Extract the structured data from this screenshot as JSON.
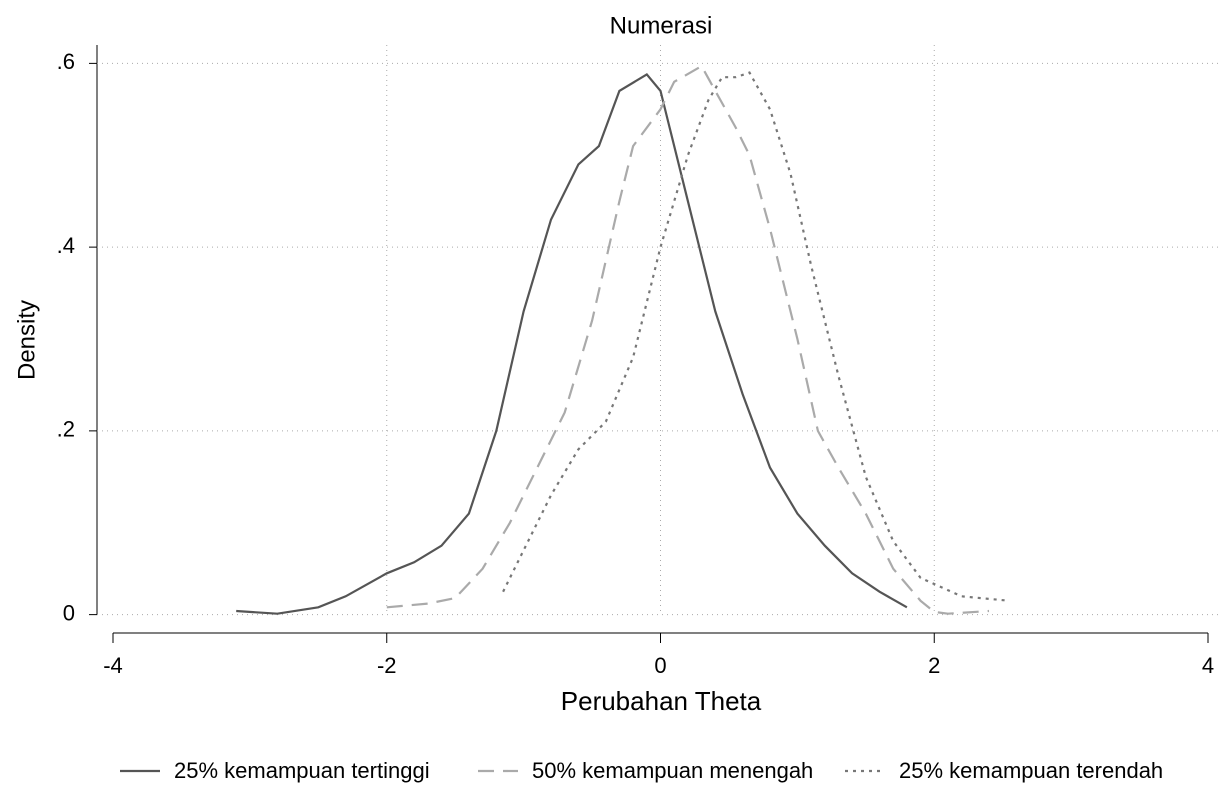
{
  "chart_data": {
    "type": "line",
    "title": "Numerasi",
    "xlabel": "Perubahan Theta",
    "ylabel": "Density",
    "xlim": [
      -4,
      4
    ],
    "xticks": [
      -4,
      -2,
      0,
      2,
      4
    ],
    "ylim": [
      -0.02,
      0.62
    ],
    "yticks": [
      0,
      {
        "value": 0.2,
        "label": ".2"
      },
      {
        "value": 0.4,
        "label": ".4"
      },
      {
        "value": 0.6,
        "label": ".6"
      }
    ],
    "grid": true,
    "legend": "bottom",
    "series": [
      {
        "name": "25% kemampuan tertinggi",
        "color": "#555555",
        "dash": "solid",
        "x": [
          -3.1,
          -2.8,
          -2.5,
          -2.3,
          -2.0,
          -1.8,
          -1.6,
          -1.4,
          -1.2,
          -1.0,
          -0.8,
          -0.6,
          -0.45,
          -0.3,
          -0.1,
          0.0,
          0.2,
          0.4,
          0.6,
          0.8,
          1.0,
          1.2,
          1.4,
          1.6,
          1.8
        ],
        "values": [
          0.004,
          0.001,
          0.008,
          0.02,
          0.045,
          0.057,
          0.075,
          0.11,
          0.2,
          0.33,
          0.43,
          0.49,
          0.51,
          0.57,
          0.588,
          0.57,
          0.45,
          0.33,
          0.24,
          0.16,
          0.11,
          0.075,
          0.045,
          0.025,
          0.008
        ]
      },
      {
        "name": "50% kemampuan menengah",
        "color": "#aaaaaa",
        "dash": "dash",
        "x": [
          -2.0,
          -1.7,
          -1.5,
          -1.3,
          -1.1,
          -0.9,
          -0.7,
          -0.5,
          -0.3,
          -0.2,
          0.0,
          0.1,
          0.3,
          0.4,
          0.55,
          0.65,
          0.8,
          1.0,
          1.15,
          1.3,
          1.5,
          1.7,
          1.9,
          2.0,
          2.1,
          2.4
        ],
        "values": [
          0.008,
          0.012,
          0.018,
          0.05,
          0.1,
          0.16,
          0.22,
          0.32,
          0.45,
          0.51,
          0.55,
          0.58,
          0.597,
          0.57,
          0.53,
          0.5,
          0.42,
          0.3,
          0.2,
          0.16,
          0.11,
          0.05,
          0.015,
          0.003,
          0.001,
          0.004
        ]
      },
      {
        "name": "25% kemampuan terendah",
        "color": "#777777",
        "dash": "dot",
        "x": [
          -1.15,
          -1.0,
          -0.8,
          -0.6,
          -0.4,
          -0.2,
          0.0,
          0.2,
          0.35,
          0.45,
          0.55,
          0.65,
          0.8,
          0.95,
          1.1,
          1.3,
          1.5,
          1.7,
          1.9,
          2.05,
          2.2,
          2.55
        ],
        "values": [
          0.025,
          0.07,
          0.13,
          0.18,
          0.21,
          0.28,
          0.4,
          0.5,
          0.56,
          0.585,
          0.585,
          0.59,
          0.55,
          0.48,
          0.38,
          0.26,
          0.15,
          0.08,
          0.04,
          0.03,
          0.02,
          0.015
        ]
      }
    ]
  }
}
